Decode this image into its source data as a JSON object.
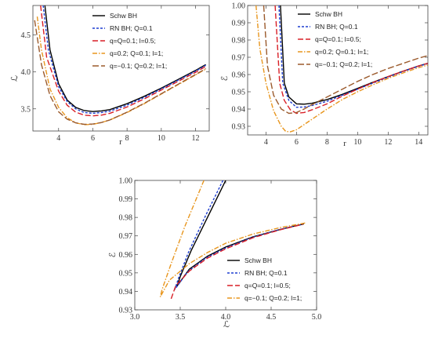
{
  "chart_data": [
    {
      "type": "line",
      "xlabel": "r",
      "ylabel": "ℒ",
      "xlim": [
        2.5,
        12.8
      ],
      "ylim": [
        3.2,
        4.9
      ],
      "xticks": [
        4,
        6,
        8,
        10,
        12
      ],
      "yticks": [
        3.5,
        4.0,
        4.5
      ],
      "ytick_labels": [
        "3.5",
        "4.0",
        "4.5"
      ],
      "legend_position": "top-right",
      "series": [
        {
          "name": "Schw BH",
          "color": "#000000",
          "dash": "solid",
          "x": [
            3.2,
            3.5,
            4,
            4.5,
            5,
            5.5,
            6,
            6.5,
            7,
            8,
            9,
            10,
            11,
            12,
            12.6
          ],
          "y": [
            4.9,
            4.3,
            3.84,
            3.62,
            3.52,
            3.476,
            3.464,
            3.472,
            3.49,
            3.57,
            3.67,
            3.78,
            3.9,
            4.02,
            4.1
          ]
        },
        {
          "name": "RN BH; Q=0.1",
          "color": "#1f3fd0",
          "dash": "3,2",
          "x": [
            3.1,
            3.4,
            4,
            4.5,
            5,
            5.5,
            6,
            6.5,
            7,
            8,
            9,
            10,
            11,
            12,
            12.6
          ],
          "y": [
            4.9,
            4.3,
            3.8,
            3.6,
            3.5,
            3.45,
            3.44,
            3.45,
            3.47,
            3.55,
            3.655,
            3.77,
            3.89,
            4.01,
            4.09
          ]
        },
        {
          "name": "q=Q=0.1; l=0.5;",
          "color": "#d81f26",
          "dash": "7,3",
          "x": [
            2.95,
            3.3,
            4,
            4.5,
            5,
            5.5,
            6,
            6.5,
            7,
            8,
            9,
            10,
            11,
            12,
            12.6
          ],
          "y": [
            4.9,
            4.2,
            3.74,
            3.55,
            3.455,
            3.415,
            3.405,
            3.415,
            3.44,
            3.525,
            3.635,
            3.755,
            3.875,
            3.995,
            4.075
          ]
        },
        {
          "name": "q=0.2; Q=0.1; l=1;",
          "color": "#e8961e",
          "dash": "6,2,1.5,2",
          "x": [
            2.75,
            3,
            3.5,
            4,
            4.5,
            5,
            5.5,
            6,
            6.5,
            7,
            8,
            9,
            10,
            11,
            12,
            12.6
          ],
          "y": [
            4.75,
            4.3,
            3.77,
            3.52,
            3.38,
            3.31,
            3.285,
            3.29,
            3.315,
            3.35,
            3.45,
            3.57,
            3.7,
            3.83,
            3.96,
            4.04
          ]
        },
        {
          "name": "q=−0.1; Q=0.2; l=1;",
          "color": "#9b5a2c",
          "dash": "8,3",
          "x": [
            2.6,
            3,
            3.5,
            4,
            4.5,
            5,
            5.5,
            6,
            6.5,
            7,
            8,
            9,
            10,
            11,
            12,
            12.6
          ],
          "y": [
            4.7,
            4.1,
            3.68,
            3.46,
            3.36,
            3.31,
            3.29,
            3.295,
            3.315,
            3.35,
            3.455,
            3.575,
            3.705,
            3.835,
            3.965,
            4.045
          ]
        }
      ]
    },
    {
      "type": "line",
      "xlabel": "r",
      "ylabel": "ℰ",
      "xlim": [
        2.8,
        14.6
      ],
      "ylim": [
        0.925,
        1.0
      ],
      "xticks": [
        4,
        6,
        8,
        10,
        12,
        14
      ],
      "yticks": [
        0.93,
        0.94,
        0.95,
        0.96,
        0.97,
        0.98,
        0.99,
        1.0
      ],
      "ytick_labels": [
        "0.93",
        "0.94",
        "0.95",
        "0.96",
        "0.97",
        "0.98",
        "0.99",
        "1.00"
      ],
      "legend_position": "top-right",
      "series": [
        {
          "name": "Schw BH",
          "color": "#000000",
          "dash": "solid",
          "x": [
            4.95,
            5.2,
            5.5,
            6,
            6.5,
            7,
            8,
            9,
            10,
            11,
            12,
            13,
            14,
            14.6
          ],
          "y": [
            1.0,
            0.955,
            0.947,
            0.943,
            0.9428,
            0.9433,
            0.9455,
            0.9485,
            0.952,
            0.9555,
            0.9588,
            0.962,
            0.965,
            0.9665
          ]
        },
        {
          "name": "RN BH; Q=0.1",
          "color": "#1f3fd0",
          "dash": "3,2",
          "x": [
            4.85,
            5.1,
            5.5,
            6,
            6.5,
            7,
            8,
            9,
            10,
            11,
            12,
            13,
            14,
            14.6
          ],
          "y": [
            1.0,
            0.955,
            0.945,
            0.941,
            0.9412,
            0.942,
            0.9445,
            0.948,
            0.9515,
            0.955,
            0.9585,
            0.9618,
            0.9648,
            0.9663
          ]
        },
        {
          "name": "q=Q=0.1; l=0.5;",
          "color": "#d81f26",
          "dash": "7,3",
          "x": [
            4.6,
            4.9,
            5.2,
            5.6,
            6,
            6.5,
            7,
            8,
            9,
            10,
            11,
            12,
            13,
            14,
            14.6
          ],
          "y": [
            1.0,
            0.955,
            0.945,
            0.9395,
            0.9375,
            0.938,
            0.9395,
            0.943,
            0.9475,
            0.9515,
            0.9553,
            0.9588,
            0.962,
            0.965,
            0.9665
          ]
        },
        {
          "name": "q=0.2; Q=0.1; l=1;",
          "color": "#e8961e",
          "dash": "6,2,1.5,2",
          "x": [
            3.35,
            3.6,
            4,
            4.5,
            5,
            5.3,
            5.6,
            6,
            6.5,
            7,
            8,
            9,
            10,
            11,
            12,
            13,
            14,
            14.6
          ],
          "y": [
            1.0,
            0.975,
            0.955,
            0.939,
            0.93,
            0.927,
            0.9268,
            0.928,
            0.931,
            0.934,
            0.94,
            0.9455,
            0.95,
            0.954,
            0.9578,
            0.961,
            0.964,
            0.9655
          ]
        },
        {
          "name": "q=−0.1; Q=0.2; l=1;",
          "color": "#9b5a2c",
          "dash": "8,3",
          "x": [
            3.85,
            4.1,
            4.5,
            5,
            5.5,
            6,
            6.5,
            7,
            8,
            9,
            10,
            11,
            12,
            13,
            14,
            14.6
          ],
          "y": [
            1.0,
            0.965,
            0.948,
            0.94,
            0.9375,
            0.938,
            0.94,
            0.9425,
            0.947,
            0.9515,
            0.956,
            0.96,
            0.9635,
            0.9665,
            0.9695,
            0.971
          ]
        }
      ]
    },
    {
      "type": "line",
      "xlabel": "ℒ",
      "ylabel": "ℰ",
      "xlim": [
        3.0,
        5.0
      ],
      "ylim": [
        0.93,
        1.0
      ],
      "xticks": [
        3.0,
        3.5,
        4.0,
        4.5,
        5.0
      ],
      "xtick_labels": [
        "3.0",
        "3.5",
        "4.0",
        "4.5",
        "5.0"
      ],
      "yticks": [
        0.93,
        0.94,
        0.95,
        0.96,
        0.97,
        0.98,
        0.99,
        1.0
      ],
      "ytick_labels": [
        "0.93",
        "0.94",
        "0.95",
        "0.96",
        "0.97",
        "0.98",
        "0.99",
        "1.00"
      ],
      "legend_position": "bottom-right",
      "series": [
        {
          "name": "Schw BH",
          "color": "#000000",
          "dash": "solid",
          "x": [
            4.0,
            3.8,
            3.62,
            3.5,
            3.464,
            3.6,
            3.8,
            4.0,
            4.3,
            4.6,
            4.86
          ],
          "y": [
            1.0,
            0.98,
            0.962,
            0.948,
            0.9428,
            0.952,
            0.959,
            0.964,
            0.9695,
            0.9735,
            0.9765
          ]
        },
        {
          "name": "RN BH; Q=0.1",
          "color": "#1f3fd0",
          "dash": "3,2",
          "x": [
            3.97,
            3.77,
            3.59,
            3.48,
            3.44,
            3.58,
            3.78,
            3.98,
            4.28,
            4.58,
            4.85
          ],
          "y": [
            1.0,
            0.98,
            0.961,
            0.947,
            0.941,
            0.9505,
            0.958,
            0.963,
            0.969,
            0.9733,
            0.9763
          ]
        },
        {
          "name": "q=Q=0.1; l=0.5;",
          "color": "#d81f26",
          "dash": "7,3",
          "x": [
            3.4,
            3.45,
            3.6,
            3.8,
            4.0,
            4.3,
            4.6,
            4.85
          ],
          "y": [
            0.936,
            0.943,
            0.951,
            0.958,
            0.963,
            0.969,
            0.9733,
            0.9763
          ]
        },
        {
          "name": "q=−0.1; Q=0.2; l=1;",
          "color": "#e8961e",
          "dash": "6,2,1.5,2",
          "x": [
            3.76,
            3.55,
            3.4,
            3.3,
            3.28,
            3.38,
            3.6,
            3.8,
            4.0,
            4.3,
            4.6,
            4.88
          ],
          "y": [
            1.0,
            0.975,
            0.955,
            0.941,
            0.937,
            0.946,
            0.955,
            0.961,
            0.966,
            0.971,
            0.9745,
            0.977
          ]
        }
      ]
    }
  ]
}
